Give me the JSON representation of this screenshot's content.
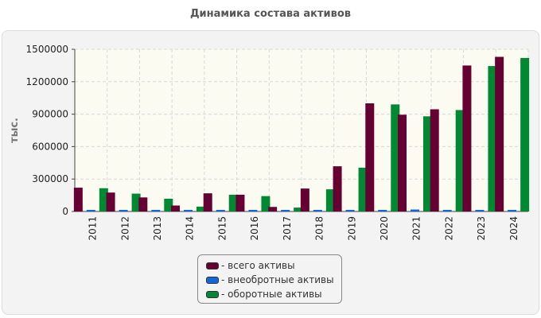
{
  "chart_data": {
    "type": "bar",
    "title": "Динамика состава активов",
    "ylabel": "тыс.",
    "xlabel": "",
    "ylim": [
      0,
      1500000
    ],
    "yticks": [
      0,
      300000,
      600000,
      900000,
      1200000,
      1500000
    ],
    "categories": [
      "2011",
      "2012",
      "2013",
      "2014",
      "2015",
      "2016",
      "2017",
      "2018",
      "2019",
      "2020",
      "2021",
      "2022",
      "2023",
      "2024"
    ],
    "series": [
      {
        "name": "всего активы",
        "legend": "- всего активы",
        "color": "#660033",
        "values": [
          220000,
          175000,
          130000,
          55000,
          168000,
          155000,
          42000,
          212000,
          418000,
          1000000,
          895000,
          945000,
          1350000,
          1430000
        ]
      },
      {
        "name": "внеобротные активы",
        "legend": "- внеобротные активы",
        "color": "#1166dd",
        "values": [
          4000,
          12000,
          10000,
          10000,
          14000,
          12000,
          12000,
          12000,
          14000,
          6000,
          18000,
          6000,
          6000,
          10000
        ]
      },
      {
        "name": "оборотные активы",
        "legend": "- оборотные активы",
        "color": "#008833",
        "values": [
          215000,
          165000,
          118000,
          45000,
          155000,
          142000,
          36000,
          205000,
          405000,
          990000,
          880000,
          938000,
          1345000,
          1420000
        ]
      }
    ],
    "grid": true,
    "legend_position": "bottom-center"
  }
}
